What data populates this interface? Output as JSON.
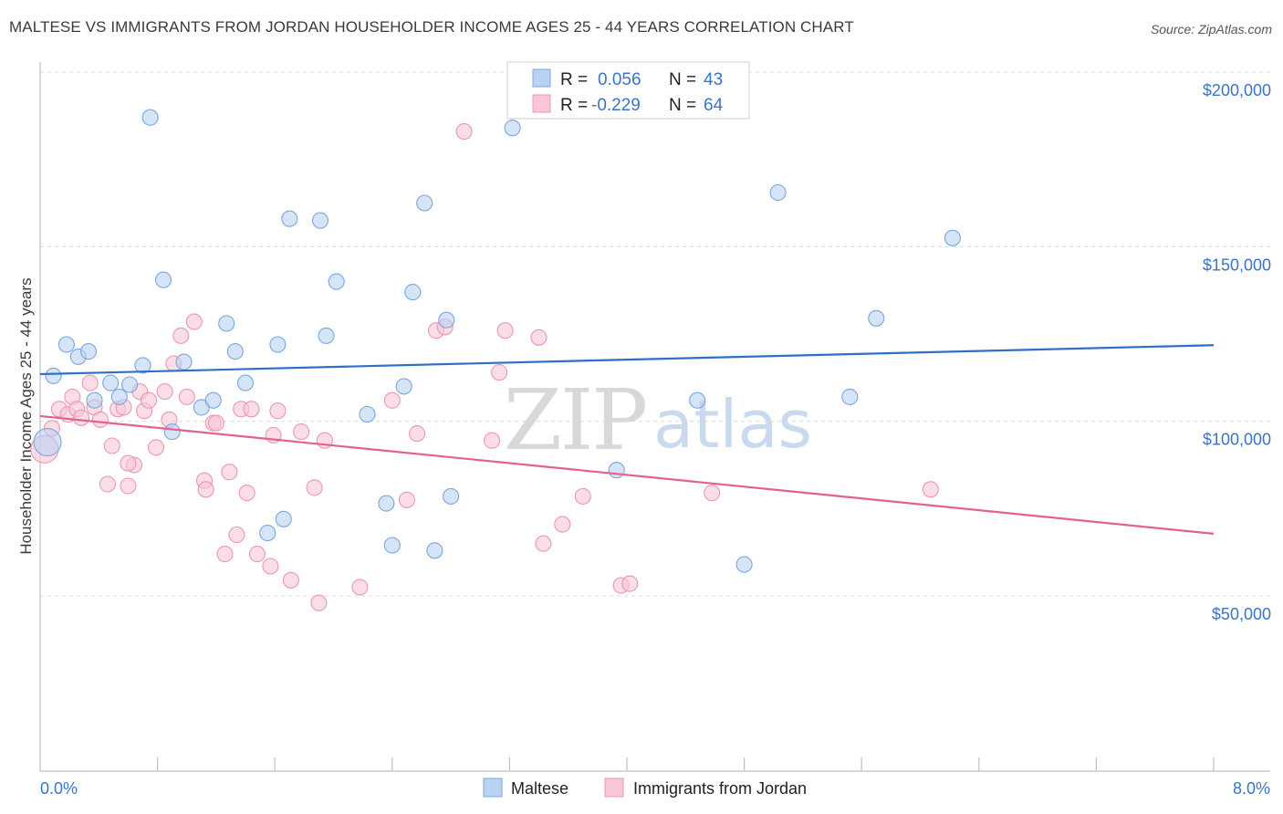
{
  "header": {
    "title": "MALTESE VS IMMIGRANTS FROM JORDAN HOUSEHOLDER INCOME AGES 25 - 44 YEARS CORRELATION CHART",
    "source": "Source: ZipAtlas.com"
  },
  "watermark": {
    "zip": "ZIP",
    "atlas": "atlas"
  },
  "legend": {
    "r_label": "R =",
    "n_label": "N =",
    "rows": [
      {
        "r": "0.056",
        "n": "43",
        "series": "Maltese"
      },
      {
        "r": "-0.229",
        "n": "64",
        "series": "Immigrants from Jordan"
      }
    ]
  },
  "colors": {
    "maltese_fill": "#b9d2f2",
    "maltese_stroke": "#7aa6e0",
    "maltese_line": "#2f6fc8",
    "jordan_fill": "#f8c6d6",
    "jordan_stroke": "#ec97b2",
    "jordan_line": "#e3618e",
    "tick_text": "#3a74c9",
    "grid": "#dcdcdc"
  },
  "chart_data": {
    "type": "scatter",
    "title": "MALTESE VS IMMIGRANTS FROM JORDAN HOUSEHOLDER INCOME AGES 25 - 44 YEARS CORRELATION CHART",
    "xlabel": "",
    "ylabel": "Householder Income Ages 25 - 44 years",
    "xlim": [
      0,
      8
    ],
    "ylim": [
      0,
      210000
    ],
    "x_tick_labels": [
      {
        "value": 0,
        "label": "0.0%"
      },
      {
        "value": 8,
        "label": "8.0%"
      }
    ],
    "y_ticks": [
      {
        "value": 50000,
        "label": "$50,000"
      },
      {
        "value": 100000,
        "label": "$100,000"
      },
      {
        "value": 150000,
        "label": "$150,000"
      },
      {
        "value": 200000,
        "label": "$200,000"
      }
    ],
    "series": [
      {
        "name": "Maltese",
        "r": 0.056,
        "n": 43,
        "trend": {
          "x": [
            0,
            8
          ],
          "y": [
            113500,
            121800
          ]
        },
        "points": [
          [
            0.05,
            94000
          ],
          [
            0.09,
            113000
          ],
          [
            0.18,
            122000
          ],
          [
            0.26,
            118500
          ],
          [
            0.33,
            120000
          ],
          [
            0.37,
            106000
          ],
          [
            0.48,
            111000
          ],
          [
            0.54,
            107000
          ],
          [
            0.61,
            110500
          ],
          [
            0.7,
            116000
          ],
          [
            0.75,
            187000
          ],
          [
            0.84,
            140500
          ],
          [
            0.9,
            97000
          ],
          [
            0.98,
            117000
          ],
          [
            1.1,
            104000
          ],
          [
            1.18,
            106000
          ],
          [
            1.27,
            128000
          ],
          [
            1.33,
            120000
          ],
          [
            1.4,
            111000
          ],
          [
            1.55,
            68000
          ],
          [
            1.62,
            122000
          ],
          [
            1.66,
            72000
          ],
          [
            1.7,
            158000
          ],
          [
            1.91,
            157500
          ],
          [
            1.95,
            124500
          ],
          [
            2.02,
            140000
          ],
          [
            2.23,
            102000
          ],
          [
            2.36,
            76500
          ],
          [
            2.4,
            64500
          ],
          [
            2.48,
            110000
          ],
          [
            2.54,
            137000
          ],
          [
            2.62,
            162500
          ],
          [
            2.69,
            63000
          ],
          [
            2.77,
            129000
          ],
          [
            2.8,
            78500
          ],
          [
            3.22,
            184000
          ],
          [
            3.93,
            86000
          ],
          [
            4.48,
            106000
          ],
          [
            4.8,
            59000
          ],
          [
            5.03,
            165500
          ],
          [
            5.52,
            107000
          ],
          [
            5.7,
            129500
          ],
          [
            6.22,
            152500
          ]
        ]
      },
      {
        "name": "Immigrants from Jordan",
        "r": -0.229,
        "n": 64,
        "trend": {
          "x": [
            0,
            8
          ],
          "y": [
            101500,
            67800
          ]
        },
        "points": [
          [
            0.03,
            92000
          ],
          [
            0.08,
            98000
          ],
          [
            0.13,
            103500
          ],
          [
            0.19,
            102000
          ],
          [
            0.22,
            107000
          ],
          [
            0.25,
            103500
          ],
          [
            0.28,
            101000
          ],
          [
            0.34,
            111000
          ],
          [
            0.37,
            104000
          ],
          [
            0.41,
            100500
          ],
          [
            0.46,
            82000
          ],
          [
            0.49,
            93000
          ],
          [
            0.53,
            103500
          ],
          [
            0.57,
            104000
          ],
          [
            0.6,
            81500
          ],
          [
            0.64,
            87500
          ],
          [
            0.68,
            108500
          ],
          [
            0.71,
            103000
          ],
          [
            0.74,
            106000
          ],
          [
            0.79,
            92500
          ],
          [
            0.85,
            108500
          ],
          [
            0.88,
            100500
          ],
          [
            0.91,
            116500
          ],
          [
            0.96,
            124500
          ],
          [
            1.0,
            107000
          ],
          [
            1.05,
            128500
          ],
          [
            1.12,
            83000
          ],
          [
            1.13,
            80500
          ],
          [
            1.18,
            99500
          ],
          [
            1.2,
            99500
          ],
          [
            1.26,
            62000
          ],
          [
            1.29,
            85500
          ],
          [
            1.34,
            67500
          ],
          [
            1.37,
            103500
          ],
          [
            1.41,
            79500
          ],
          [
            1.44,
            103500
          ],
          [
            1.48,
            62000
          ],
          [
            1.57,
            58500
          ],
          [
            1.59,
            96000
          ],
          [
            1.71,
            54500
          ],
          [
            1.78,
            97000
          ],
          [
            1.87,
            81000
          ],
          [
            1.9,
            48000
          ],
          [
            1.94,
            94500
          ],
          [
            2.18,
            52500
          ],
          [
            2.4,
            106000
          ],
          [
            2.5,
            77500
          ],
          [
            2.57,
            96500
          ],
          [
            2.7,
            126000
          ],
          [
            2.76,
            127000
          ],
          [
            2.89,
            183000
          ],
          [
            3.08,
            94500
          ],
          [
            3.13,
            114000
          ],
          [
            3.17,
            126000
          ],
          [
            3.4,
            124000
          ],
          [
            3.43,
            65000
          ],
          [
            3.56,
            70500
          ],
          [
            3.7,
            78500
          ],
          [
            3.96,
            53000
          ],
          [
            4.02,
            53500
          ],
          [
            4.58,
            79500
          ],
          [
            6.07,
            80500
          ],
          [
            0.6,
            88000
          ],
          [
            1.62,
            103000
          ]
        ]
      }
    ]
  },
  "bottom_legend": {
    "items": [
      {
        "label": "Maltese"
      },
      {
        "label": "Immigrants from Jordan"
      }
    ]
  }
}
